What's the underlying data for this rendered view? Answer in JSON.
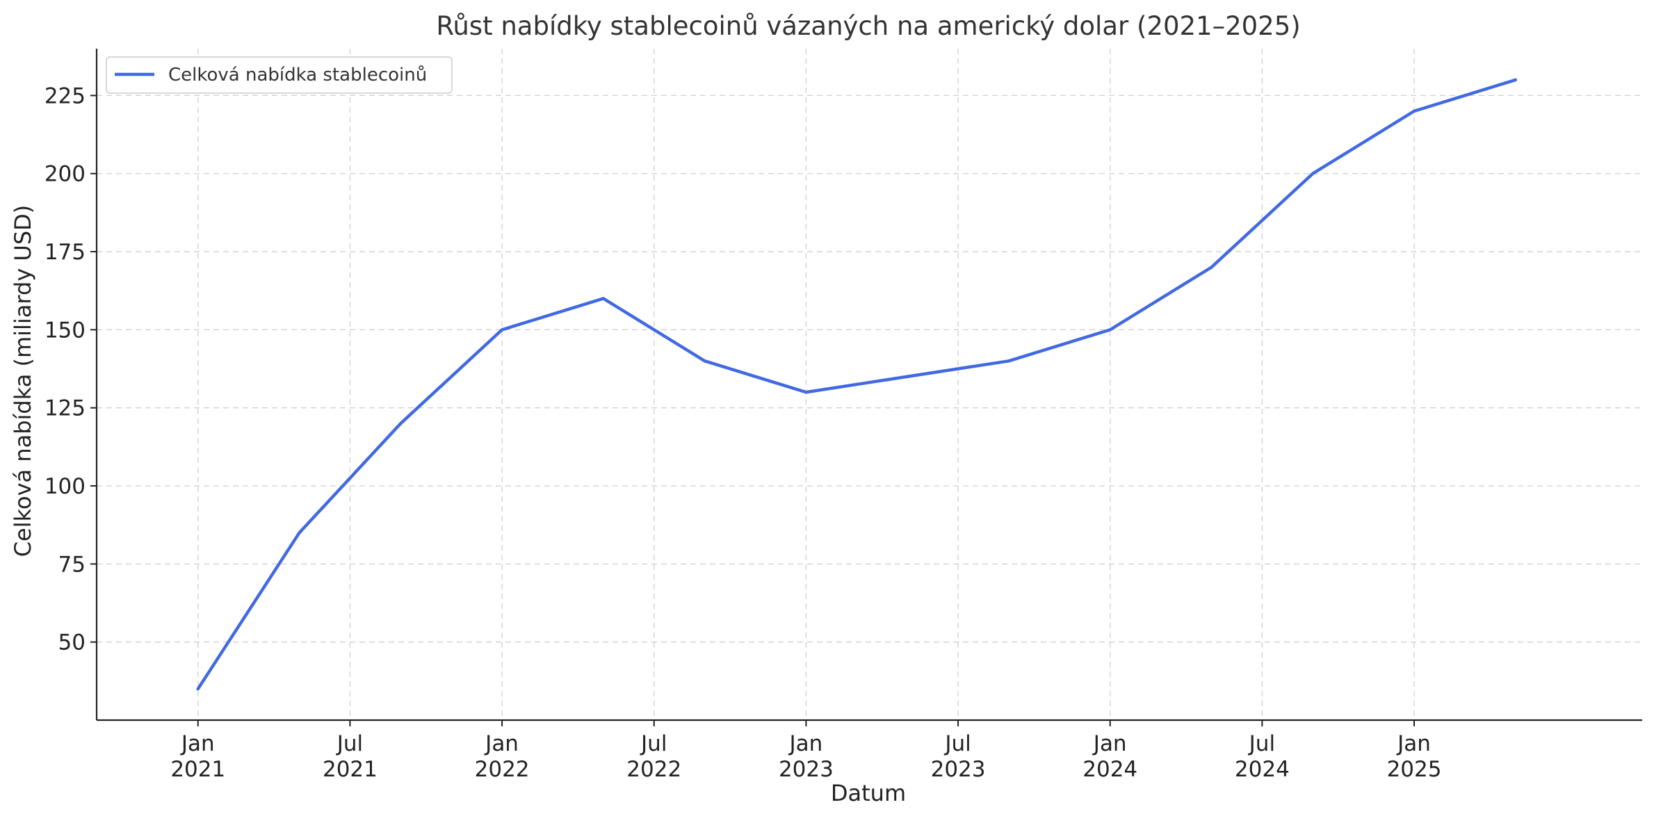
{
  "chart_data": {
    "type": "line",
    "title": "Růst nabídky stablecoinů vázaných na americký dolar (2021–2025)",
    "xlabel": "Datum",
    "ylabel": "Celková nabídka (miliardy USD)",
    "x": [
      "2021-01",
      "2021-05",
      "2021-09",
      "2022-01",
      "2022-05",
      "2022-09",
      "2023-01",
      "2023-05",
      "2023-09",
      "2024-01",
      "2024-05",
      "2024-09",
      "2025-01",
      "2025-05"
    ],
    "series": [
      {
        "name": "Celková nabídka stablecoinů",
        "color": "#4169e1",
        "values": [
          35,
          85,
          120,
          150,
          160,
          140,
          130,
          135,
          140,
          150,
          170,
          200,
          220,
          230
        ]
      }
    ],
    "xlim": [
      "2020-09",
      "2025-10"
    ],
    "ylim": [
      25,
      240
    ],
    "y_ticks": [
      50,
      75,
      100,
      125,
      150,
      175,
      200,
      225
    ],
    "x_ticks": [
      {
        "date": "2021-01",
        "month": "Jan",
        "year": "2021"
      },
      {
        "date": "2021-07",
        "month": "Jul",
        "year": "2021"
      },
      {
        "date": "2022-01",
        "month": "Jan",
        "year": "2022"
      },
      {
        "date": "2022-07",
        "month": "Jul",
        "year": "2022"
      },
      {
        "date": "2023-01",
        "month": "Jan",
        "year": "2023"
      },
      {
        "date": "2023-07",
        "month": "Jul",
        "year": "2023"
      },
      {
        "date": "2024-01",
        "month": "Jan",
        "year": "2024"
      },
      {
        "date": "2024-07",
        "month": "Jul",
        "year": "2024"
      },
      {
        "date": "2025-01",
        "month": "Jan",
        "year": "2025"
      }
    ],
    "grid": true,
    "legend_position": "top-left"
  }
}
